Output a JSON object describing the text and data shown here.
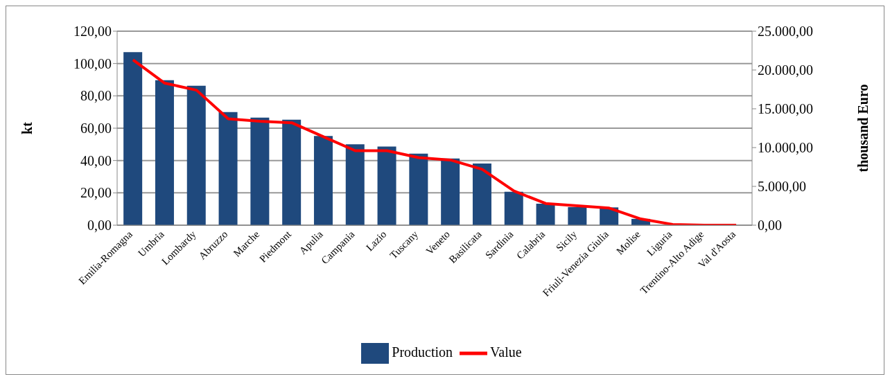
{
  "chart_data": {
    "type": "bar",
    "ylabel": "kt",
    "y2label": "thousand Euro",
    "categories": [
      "Emilia-Romagna",
      "Umbria",
      "Lombardy",
      "Abruzzo",
      "Marche",
      "Piedmont",
      "Apulia",
      "Campania",
      "Lazio",
      "Tuscany",
      "Veneto",
      "Basilicata",
      "Sardinia",
      "Calabria",
      "Sicily",
      "Friuli-Venezia Giulia",
      "Molise",
      "Liguria",
      "Trentino-Alto Adige",
      "Val d'Aosta"
    ],
    "series": [
      {
        "name": "Production",
        "color": "#1f497d",
        "values": [
          107,
          89.7,
          86.2,
          70,
          66.5,
          65.3,
          55.2,
          50,
          48.6,
          44.2,
          41.3,
          38.1,
          20.7,
          13.3,
          11.2,
          11,
          3.9,
          0,
          0,
          0
        ]
      },
      {
        "name": "Value",
        "type": "line",
        "axis": "y2",
        "color": "#ff0000",
        "values": [
          21300,
          18300,
          17400,
          13700,
          13400,
          13200,
          11400,
          9600,
          9600,
          8700,
          8400,
          7200,
          4400,
          2800,
          2500,
          2200,
          800,
          100,
          0,
          0
        ]
      }
    ],
    "ylim": [
      0,
      120
    ],
    "yticks": [
      {
        "value": 0,
        "label": "0,00"
      },
      {
        "value": 20,
        "label": "20,00"
      },
      {
        "value": 40,
        "label": "40,00"
      },
      {
        "value": 60,
        "label": "60,00"
      },
      {
        "value": 80,
        "label": "80,00"
      },
      {
        "value": 100,
        "label": "100,00"
      },
      {
        "value": 120,
        "label": "120,00"
      }
    ],
    "y2lim": [
      0,
      25000
    ],
    "y2ticks": [
      {
        "value": 0,
        "label": "0,00"
      },
      {
        "value": 5000,
        "label": "5.000,00"
      },
      {
        "value": 10000,
        "label": "10.000,00"
      },
      {
        "value": 15000,
        "label": "15.000,00"
      },
      {
        "value": 20000,
        "label": "20.000,00"
      },
      {
        "value": 25000,
        "label": "25.000,00"
      }
    ],
    "grid": "y",
    "legend": "bottom",
    "marker": "none",
    "line_style": "solid"
  }
}
